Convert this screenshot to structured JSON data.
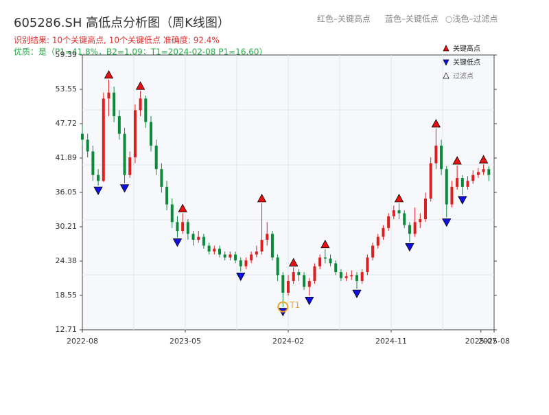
{
  "chart_data": {
    "type": "candlestick",
    "title": "605286.SH 高低点分析图（周K线图）",
    "result_text": "识别结果: 10个关键高点, 10个关键低点  准确度: 92.4%",
    "quality_text": "优质：是（P1=41.8%，B2=1.09；T1=2024-02-08 P1=16.60）",
    "top_legend": [
      "红色–关键高点",
      "蓝色–关键低点",
      "○浅色–过滤点"
    ],
    "up_color": "#dd1f1f",
    "down_color": "#0b8a3c",
    "x": [
      0,
      2,
      4,
      6,
      8,
      10,
      12,
      14,
      16,
      18,
      20,
      22,
      24,
      26,
      28,
      30,
      32,
      34,
      36,
      38,
      40,
      42,
      44,
      46,
      48,
      50,
      52,
      54,
      56,
      58,
      60,
      62,
      64,
      66,
      68,
      70,
      72,
      74,
      76,
      78,
      80,
      82,
      84,
      86,
      88,
      90,
      92,
      94,
      96,
      98,
      100,
      102,
      104,
      106,
      108,
      110,
      112,
      114,
      116,
      118,
      120,
      122,
      124,
      126,
      128,
      130,
      132,
      134,
      136,
      138,
      140,
      142,
      144,
      146,
      148,
      150,
      152,
      154
    ],
    "open": [
      46,
      45,
      43,
      39,
      38,
      52,
      53,
      49,
      46,
      39,
      42,
      50,
      52,
      48,
      44,
      40,
      37,
      34,
      31,
      29.5,
      31,
      29,
      28,
      28.5,
      27,
      26,
      26.5,
      25.5,
      25,
      25.5,
      24.5,
      23.5,
      24.5,
      25.5,
      26,
      28,
      29,
      25,
      22,
      19,
      21,
      22.5,
      22,
      20,
      21,
      23.5,
      25,
      24.8,
      24,
      22.5,
      21.5,
      21.8,
      22,
      21,
      22.5,
      25,
      27,
      28.5,
      30,
      32,
      33,
      32.5,
      30.5,
      29,
      31,
      31.5,
      35,
      41,
      44,
      40,
      34,
      37,
      38.5,
      37,
      38,
      39,
      39.5,
      40
    ],
    "high": [
      47.5,
      46,
      44,
      40,
      53,
      55.2,
      54,
      50,
      47,
      43,
      51,
      53.3,
      52.5,
      49,
      45,
      41,
      38,
      35,
      32,
      32.5,
      31.5,
      29.5,
      29.5,
      29,
      27.5,
      27,
      27,
      26,
      26,
      26,
      25,
      25,
      26,
      27,
      34.2,
      31,
      29.5,
      25.5,
      22.5,
      22,
      23.3,
      23,
      22.5,
      21.5,
      24,
      25.5,
      26.4,
      25.5,
      24.5,
      23,
      22.5,
      22.8,
      22.5,
      23,
      25.5,
      27.5,
      29,
      30.5,
      32.5,
      33.8,
      34.2,
      33,
      31,
      33.5,
      32.5,
      36,
      42,
      46.9,
      45,
      40.5,
      38,
      40.6,
      39,
      38.8,
      39.8,
      40.2,
      40.8,
      40.5
    ],
    "low": [
      44,
      42,
      38,
      37.2,
      37.8,
      49,
      48,
      45,
      37.6,
      38.5,
      41,
      49,
      47,
      43,
      39,
      36,
      33,
      30,
      28.4,
      29,
      28,
      27,
      27.5,
      26.5,
      25.5,
      25.5,
      25,
      24.5,
      24.5,
      24,
      22.6,
      23,
      24,
      25,
      25.5,
      27,
      24.5,
      21,
      16.6,
      18.5,
      20.5,
      21,
      19.5,
      18.5,
      20.5,
      23,
      24,
      23.5,
      22,
      21,
      21,
      21.2,
      19.7,
      20.5,
      22,
      24.5,
      26.5,
      28,
      29.5,
      31.5,
      31.5,
      30,
      27.6,
      28.5,
      30,
      31,
      34.5,
      40,
      39,
      31.8,
      33.5,
      36.5,
      35.6,
      36.5,
      37.5,
      38.5,
      39,
      38
    ],
    "close": [
      45,
      43,
      39,
      38,
      52,
      53,
      49,
      46,
      39,
      42,
      50,
      52,
      48,
      44,
      40,
      37,
      34,
      31,
      29.5,
      31,
      29,
      28,
      28.5,
      27,
      26,
      26.5,
      25.5,
      25,
      25.5,
      24.5,
      23.5,
      24.5,
      25.5,
      26,
      28,
      29,
      25,
      22,
      19,
      21,
      22.5,
      22,
      20,
      21,
      23.5,
      25,
      24.8,
      24,
      22.5,
      21.5,
      21.8,
      22,
      21,
      22.5,
      25,
      27,
      28.5,
      30,
      32,
      33,
      32.5,
      30.5,
      29,
      31,
      31.5,
      35,
      41,
      44,
      40,
      34,
      37,
      38.5,
      37,
      38,
      39,
      39.5,
      40,
      39
    ],
    "key_highs": {
      "name": "关键高点",
      "color": "#e81010",
      "x": [
        10,
        22,
        38,
        68,
        80,
        92,
        120,
        134,
        142,
        152
      ],
      "values": [
        55.2,
        53.3,
        32.5,
        34.2,
        23.3,
        26.4,
        34.2,
        46.9,
        40.6,
        40.8
      ]
    },
    "key_lows": {
      "name": "关键低点",
      "color": "#1010e0",
      "x": [
        6,
        16,
        36,
        60,
        76,
        86,
        104,
        124,
        138,
        144
      ],
      "values": [
        37.2,
        37.6,
        28.4,
        22.6,
        16.6,
        18.5,
        19.7,
        27.6,
        31.8,
        35.6
      ]
    },
    "filtered_points": {
      "name": "过滤点",
      "x": [],
      "values": []
    },
    "annotation": {
      "label": "T1",
      "x": 76,
      "value": 16.6,
      "color": "#f0a020"
    },
    "xlim": [
      0,
      156
    ],
    "xticks": [
      {
        "value": 0,
        "label": "2022-08"
      },
      {
        "value": 39,
        "label": "2023-05"
      },
      {
        "value": 78,
        "label": "2024-02"
      },
      {
        "value": 117,
        "label": "2024-11"
      },
      {
        "value": 151,
        "label": "2025-07"
      },
      {
        "value": 156,
        "label": "2025-08"
      }
    ],
    "ylim": [
      12.71,
      59.39
    ],
    "yticks": [
      12.71,
      18.55,
      24.38,
      30.21,
      36.05,
      41.89,
      47.72,
      53.55,
      59.39
    ]
  }
}
